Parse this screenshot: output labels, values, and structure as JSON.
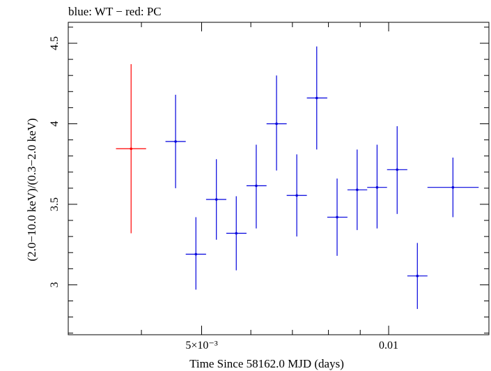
{
  "chart_data": {
    "type": "scatter",
    "title": "blue: WT − red: PC",
    "xlabel": "Time Since 58162.0 MJD (days)",
    "ylabel": "(2.0−10.0 keV)/(0.3−2.0 keV)",
    "xscale": "log",
    "xlim": [
      0.00305,
      0.0145
    ],
    "ylim": [
      2.69,
      4.63
    ],
    "xticks": [
      {
        "value": 0.005,
        "label": "5×10⁻³"
      },
      {
        "value": 0.01,
        "label": "0.01"
      }
    ],
    "yticks": [
      {
        "value": 3,
        "label": "3"
      },
      {
        "value": 3.5,
        "label": "3.5"
      },
      {
        "value": 4,
        "label": "4"
      },
      {
        "value": 4.5,
        "label": "4.5"
      }
    ],
    "series": [
      {
        "name": "PC",
        "color": "#ff0000",
        "points": [
          {
            "x": 0.00385,
            "xlo": 0.00364,
            "xhi": 0.00407,
            "y": 3.845,
            "ylo": 3.32,
            "yhi": 4.37
          }
        ]
      },
      {
        "name": "WT",
        "color": "#0000dd",
        "points": [
          {
            "x": 0.00454,
            "xlo": 0.004373,
            "xhi": 0.004714,
            "y": 3.89,
            "ylo": 3.6,
            "yhi": 4.18
          },
          {
            "x": 0.004895,
            "xlo": 0.004714,
            "xhi": 0.005083,
            "y": 3.19,
            "ylo": 2.97,
            "yhi": 3.42
          },
          {
            "x": 0.005281,
            "xlo": 0.005083,
            "xhi": 0.005479,
            "y": 3.53,
            "ylo": 3.28,
            "yhi": 3.78
          },
          {
            "x": 0.005685,
            "xlo": 0.005479,
            "xhi": 0.005905,
            "y": 3.32,
            "ylo": 3.09,
            "yhi": 3.55
          },
          {
            "x": 0.006122,
            "xlo": 0.005905,
            "xhi": 0.00636,
            "y": 3.615,
            "ylo": 3.35,
            "yhi": 3.87
          },
          {
            "x": 0.0066,
            "xlo": 0.00636,
            "xhi": 0.006853,
            "y": 4.0,
            "ylo": 3.71,
            "yhi": 4.3
          },
          {
            "x": 0.007114,
            "xlo": 0.006853,
            "xhi": 0.007385,
            "y": 3.555,
            "ylo": 3.3,
            "yhi": 3.81
          },
          {
            "x": 0.00766,
            "xlo": 0.007385,
            "xhi": 0.007965,
            "y": 4.16,
            "ylo": 3.84,
            "yhi": 4.48
          },
          {
            "x": 0.008261,
            "xlo": 0.007965,
            "xhi": 0.008584,
            "y": 3.42,
            "ylo": 3.18,
            "yhi": 3.66
          },
          {
            "x": 0.008898,
            "xlo": 0.008584,
            "xhi": 0.009236,
            "y": 3.59,
            "ylo": 3.34,
            "yhi": 3.84
          },
          {
            "x": 0.00958,
            "xlo": 0.009236,
            "xhi": 0.00994,
            "y": 3.605,
            "ylo": 3.35,
            "yhi": 3.87
          },
          {
            "x": 0.01032,
            "xlo": 0.00994,
            "xhi": 0.010716,
            "y": 3.715,
            "ylo": 3.44,
            "yhi": 3.985
          },
          {
            "x": 0.011123,
            "xlo": 0.010716,
            "xhi": 0.011547,
            "y": 3.055,
            "ylo": 2.85,
            "yhi": 3.26
          },
          {
            "x": 0.01269,
            "xlo": 0.011547,
            "xhi": 0.01396,
            "y": 3.605,
            "ylo": 3.42,
            "yhi": 3.79
          }
        ]
      }
    ]
  }
}
